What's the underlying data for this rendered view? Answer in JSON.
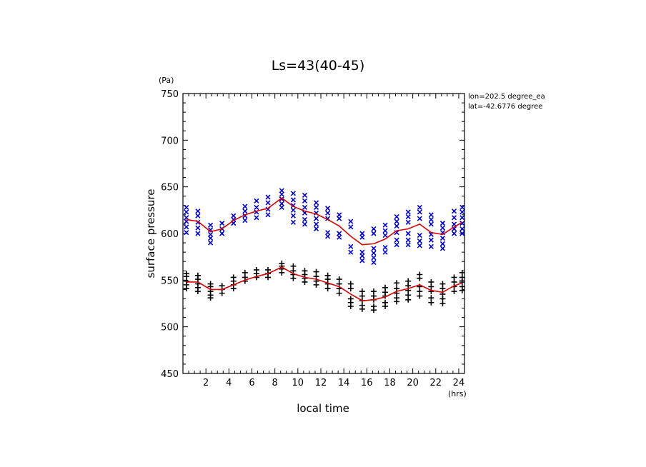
{
  "chart_data": {
    "type": "scatter",
    "title": "Ls=43(40-45)",
    "xlabel": "local time",
    "ylabel": "surface pressure",
    "x_unit": "(hrs)",
    "y_unit": "(Pa)",
    "annotations": [
      "lon=202.5 degree_ea",
      "lat=-42.6776 degree"
    ],
    "xlim": [
      0,
      24.5
    ],
    "ylim": [
      450,
      750
    ],
    "x_ticks": [
      2,
      4,
      6,
      8,
      10,
      12,
      14,
      16,
      18,
      20,
      22,
      24
    ],
    "y_ticks": [
      450,
      500,
      550,
      600,
      650,
      700,
      750
    ],
    "grid": false,
    "colors": {
      "upper_points": "#0000dd",
      "lower_points": "#000000",
      "lines": "#dd0000"
    },
    "series": [
      {
        "marker": "x",
        "color": "#0000dd",
        "points": [
          {
            "x": 0.3,
            "y": [
              628,
              623,
              617,
              613,
              607,
              601
            ]
          },
          {
            "x": 1.3,
            "y": [
              624,
              619,
              612,
              606,
              600
            ]
          },
          {
            "x": 2.4,
            "y": [
              609,
              604,
              599,
              595,
              590
            ]
          },
          {
            "x": 3.4,
            "y": [
              611,
              605,
              600
            ]
          },
          {
            "x": 4.4,
            "y": [
              619,
              615,
              611
            ]
          },
          {
            "x": 5.4,
            "y": [
              629,
              624,
              619,
              614
            ]
          },
          {
            "x": 6.4,
            "y": [
              635,
              628,
              623,
              617
            ]
          },
          {
            "x": 7.4,
            "y": [
              639,
              633,
              626,
              620
            ]
          },
          {
            "x": 8.6,
            "y": [
              646,
              642,
              637,
              632,
              628
            ]
          },
          {
            "x": 9.6,
            "y": [
              643,
              636,
              630,
              625,
              619,
              612
            ]
          },
          {
            "x": 10.6,
            "y": [
              641,
              635,
              628,
              622,
              615,
              610
            ]
          },
          {
            "x": 11.6,
            "y": [
              633,
              628,
              622,
              616,
              610,
              605
            ]
          },
          {
            "x": 12.6,
            "y": [
              627,
              622,
              616,
              601,
              597
            ]
          },
          {
            "x": 13.6,
            "y": [
              620,
              616,
              600,
              596
            ]
          },
          {
            "x": 14.6,
            "y": [
              613,
              607,
              586,
              580
            ]
          },
          {
            "x": 15.6,
            "y": [
              600,
              596,
              580,
              576,
              571
            ]
          },
          {
            "x": 16.6,
            "y": [
              605,
              600,
              584,
              579,
              574,
              569
            ]
          },
          {
            "x": 17.6,
            "y": [
              609,
              603,
              598,
              585,
              580
            ]
          },
          {
            "x": 18.6,
            "y": [
              618,
              613,
              608,
              601,
              593,
              588
            ]
          },
          {
            "x": 19.6,
            "y": [
              623,
              618,
              612,
              600,
              593,
              588
            ]
          },
          {
            "x": 20.6,
            "y": [
              628,
              623,
              616,
              598,
              592,
              587
            ]
          },
          {
            "x": 21.6,
            "y": [
              620,
              615,
              610,
              599,
              593,
              586
            ]
          },
          {
            "x": 22.6,
            "y": [
              611,
              606,
              601,
              595,
              589,
              584
            ]
          },
          {
            "x": 23.6,
            "y": [
              624,
              617,
              610,
              605,
              600
            ]
          },
          {
            "x": 24.3,
            "y": [
              628,
              623,
              617,
              611,
              605,
              600
            ]
          }
        ]
      },
      {
        "marker": "+",
        "color": "#000000",
        "points": [
          {
            "x": 0.3,
            "y": [
              557,
              554,
              549,
              545,
              541
            ]
          },
          {
            "x": 1.3,
            "y": [
              555,
              551,
              546,
              542,
              538
            ]
          },
          {
            "x": 2.4,
            "y": [
              546,
              543,
              538,
              534,
              531
            ]
          },
          {
            "x": 3.4,
            "y": [
              544,
              540,
              536
            ]
          },
          {
            "x": 4.4,
            "y": [
              553,
              549,
              545,
              541
            ]
          },
          {
            "x": 5.4,
            "y": [
              558,
              553,
              549
            ]
          },
          {
            "x": 6.4,
            "y": [
              561,
              557,
              553
            ]
          },
          {
            "x": 7.4,
            "y": [
              561,
              557,
              553
            ]
          },
          {
            "x": 8.6,
            "y": [
              568,
              565,
              562,
              558
            ]
          },
          {
            "x": 9.6,
            "y": [
              565,
              560,
              556,
              552
            ]
          },
          {
            "x": 10.6,
            "y": [
              560,
              556,
              552,
              548
            ]
          },
          {
            "x": 11.6,
            "y": [
              559,
              554,
              549,
              545
            ]
          },
          {
            "x": 12.6,
            "y": [
              555,
              551,
              546,
              541
            ]
          },
          {
            "x": 13.6,
            "y": [
              551,
              546,
              541,
              536
            ]
          },
          {
            "x": 14.6,
            "y": [
              546,
              541,
              530,
              526,
              522
            ]
          },
          {
            "x": 15.6,
            "y": [
              538,
              533,
              528,
              523,
              519
            ]
          },
          {
            "x": 16.6,
            "y": [
              538,
              533,
              529,
              522,
              518
            ]
          },
          {
            "x": 17.6,
            "y": [
              542,
              537,
              533,
              526,
              522
            ]
          },
          {
            "x": 18.6,
            "y": [
              547,
              541,
              536,
              531,
              527
            ]
          },
          {
            "x": 19.6,
            "y": [
              549,
              544,
              539,
              534,
              529
            ]
          },
          {
            "x": 20.6,
            "y": [
              556,
              552,
              543,
              538,
              533
            ]
          },
          {
            "x": 21.6,
            "y": [
              548,
              543,
              538,
              531,
              526
            ]
          },
          {
            "x": 22.6,
            "y": [
              546,
              541,
              535,
              530,
              525
            ]
          },
          {
            "x": 23.6,
            "y": [
              553,
              548,
              543,
              538
            ]
          },
          {
            "x": 24.3,
            "y": [
              558,
              553,
              548,
              543,
              539
            ]
          }
        ]
      },
      {
        "marker": "line",
        "color": "#dd0000",
        "x": [
          0.3,
          1.3,
          2.4,
          3.4,
          4.4,
          5.4,
          6.4,
          7.4,
          8.6,
          9.6,
          10.6,
          11.6,
          12.6,
          13.6,
          14.6,
          15.6,
          16.6,
          17.6,
          18.6,
          19.6,
          20.6,
          21.6,
          22.6,
          23.6,
          24.3
        ],
        "y": [
          615,
          613,
          602,
          605,
          614,
          620,
          624,
          627,
          638,
          629,
          624,
          621,
          615,
          608,
          597,
          588,
          589,
          594,
          603,
          605,
          610,
          601,
          599,
          607,
          612
        ]
      },
      {
        "marker": "line",
        "color": "#dd0000",
        "x": [
          0.3,
          1.3,
          2.4,
          3.4,
          4.4,
          5.4,
          6.4,
          7.4,
          8.6,
          9.6,
          10.6,
          11.6,
          12.6,
          13.6,
          14.6,
          15.6,
          16.6,
          17.6,
          18.6,
          19.6,
          20.6,
          21.6,
          22.6,
          23.6,
          24.3
        ],
        "y": [
          548,
          548,
          540,
          540,
          545,
          550,
          554,
          557,
          564,
          557,
          553,
          551,
          547,
          543,
          535,
          528,
          529,
          532,
          538,
          541,
          545,
          539,
          537,
          544,
          547
        ]
      }
    ]
  }
}
